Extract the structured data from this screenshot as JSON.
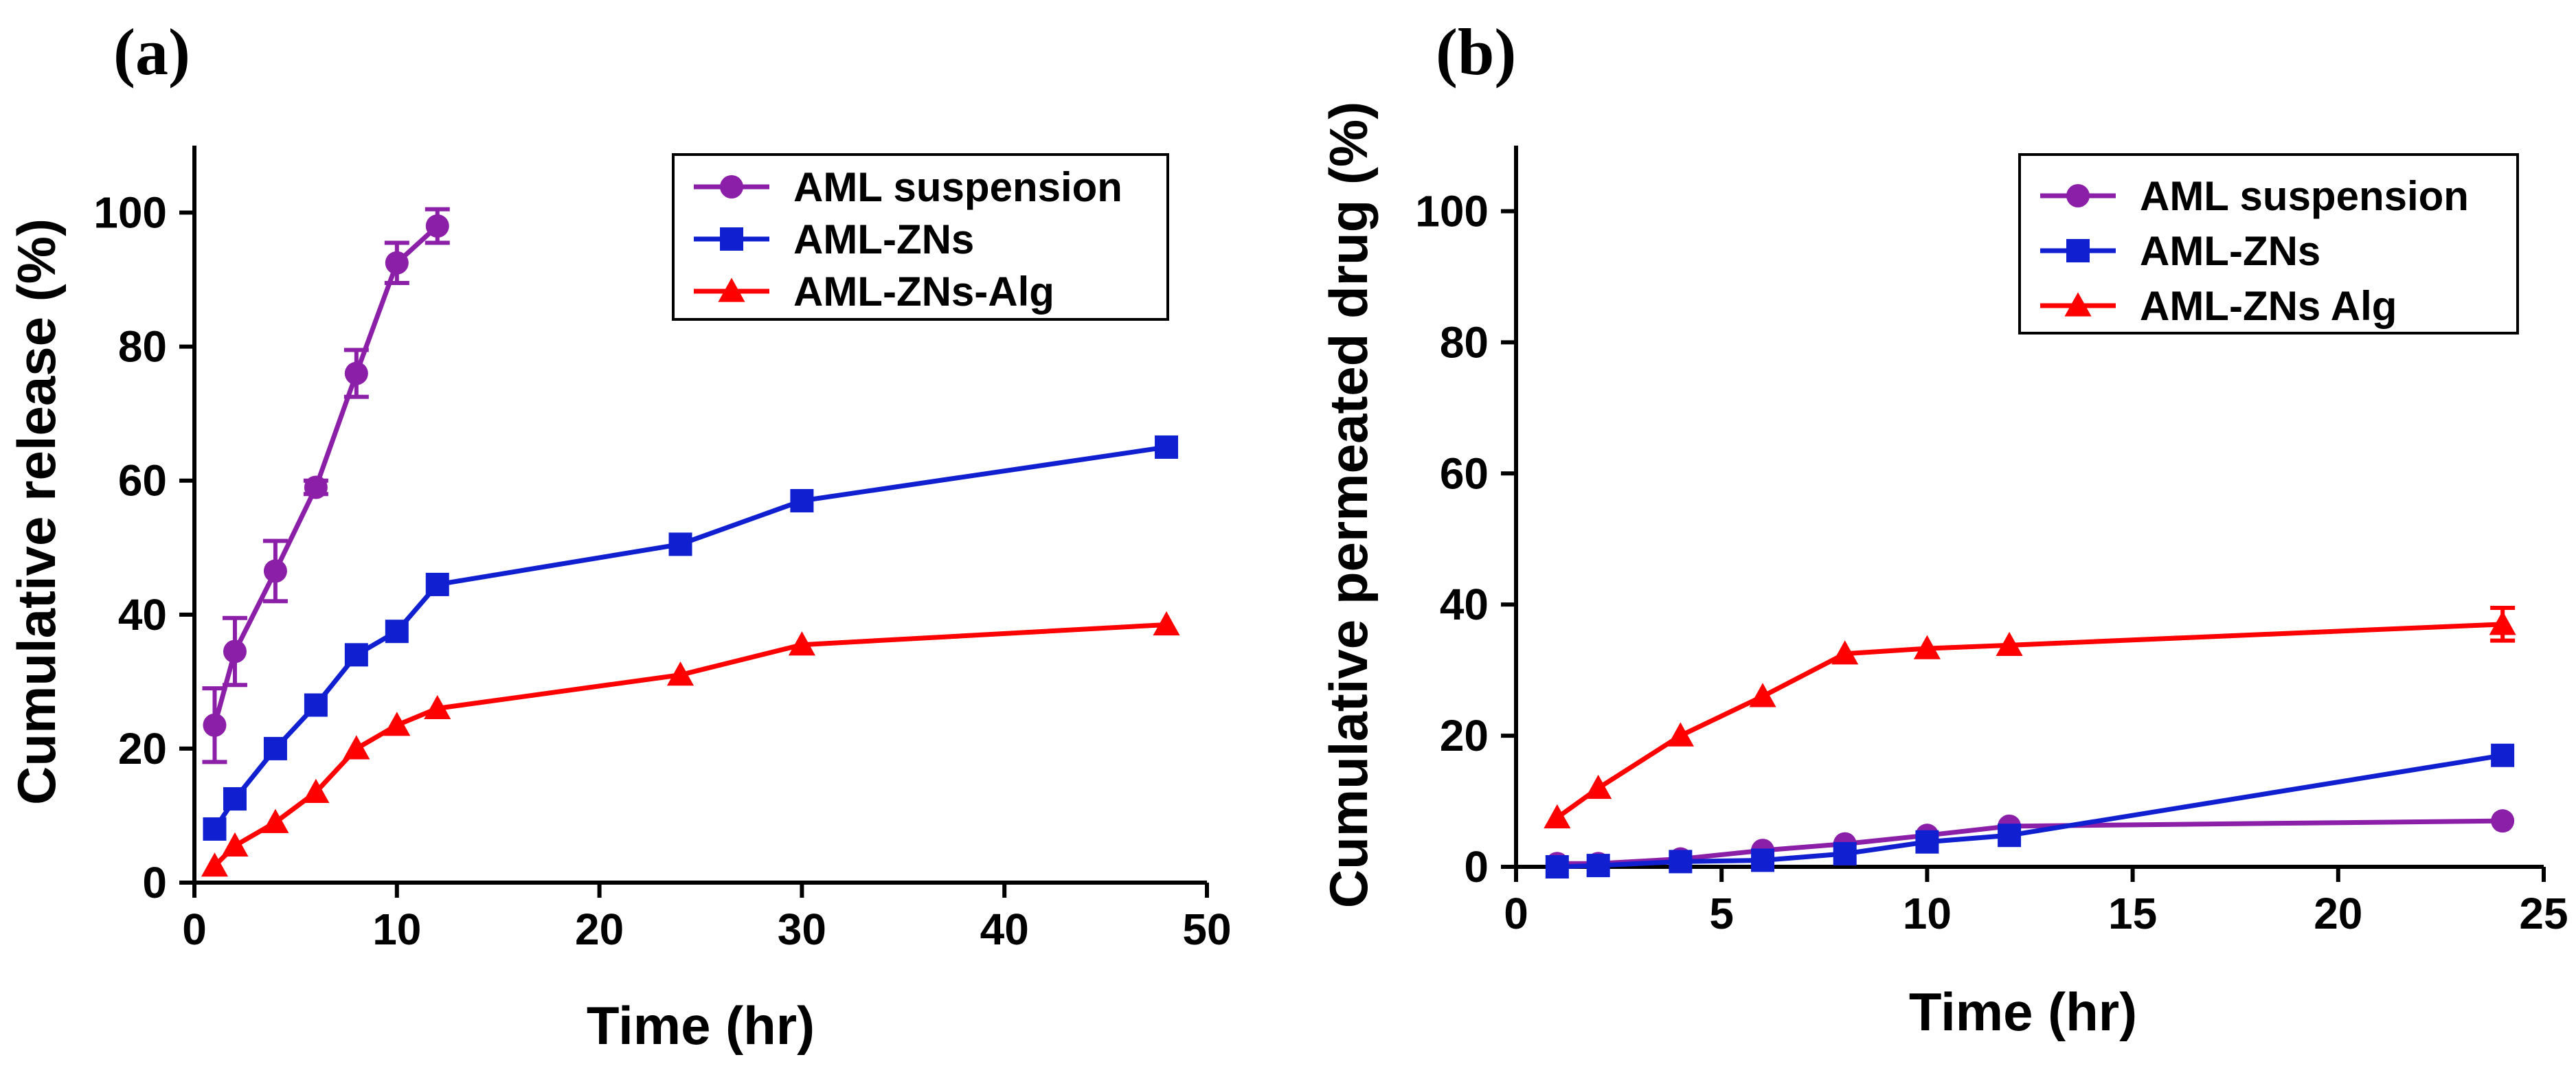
{
  "chart_data": [
    {
      "panel_label": "(a)",
      "type": "line",
      "xlabel": "Time (hr)",
      "ylabel": "Cumulative release (%)",
      "xlim": [
        0,
        50
      ],
      "ylim": [
        0,
        110
      ],
      "xticks": [
        0,
        10,
        20,
        30,
        40,
        50
      ],
      "yticks": [
        0,
        20,
        40,
        60,
        80,
        100
      ],
      "grid": false,
      "legend_position": "top-right",
      "series": [
        {
          "name": "AML suspension",
          "color": "#8B1FA8",
          "marker": "circle",
          "x": [
            1,
            2,
            4,
            6,
            8,
            10,
            12
          ],
          "y": [
            23.5,
            34.5,
            46.5,
            59,
            76,
            92.5,
            98
          ],
          "error": [
            5.5,
            5,
            4.5,
            1,
            3.5,
            3,
            2.5
          ]
        },
        {
          "name": "AML-ZNs",
          "color": "#1020D0",
          "marker": "square",
          "x": [
            1,
            2,
            4,
            6,
            8,
            10,
            12,
            24,
            30,
            48
          ],
          "y": [
            8,
            12.5,
            20,
            26.5,
            34,
            37.5,
            44.5,
            50.5,
            57,
            65
          ],
          "error": [
            0,
            0,
            0,
            0,
            0,
            0,
            0,
            0,
            0,
            0
          ]
        },
        {
          "name": "AML-ZNs-Alg",
          "color": "#FF0000",
          "marker": "triangle",
          "x": [
            1,
            2,
            4,
            6,
            8,
            10,
            12,
            24,
            30,
            48
          ],
          "y": [
            2.5,
            5.5,
            9,
            13.5,
            20,
            23.5,
            26,
            31,
            35.5,
            38.5
          ],
          "error": [
            0,
            0,
            0,
            0,
            0,
            0,
            0,
            0,
            0,
            0
          ]
        }
      ]
    },
    {
      "panel_label": "(b)",
      "type": "line",
      "xlabel": "Time (hr)",
      "ylabel": "Cumulative permeated drug (%)",
      "xlim": [
        0,
        25
      ],
      "ylim": [
        0,
        110
      ],
      "xticks": [
        0,
        5,
        10,
        15,
        20,
        25
      ],
      "yticks": [
        0,
        20,
        40,
        60,
        80,
        100
      ],
      "grid": false,
      "legend_position": "top-right",
      "series": [
        {
          "name": "AML suspension",
          "color": "#8B1FA8",
          "marker": "circle",
          "x": [
            1,
            2,
            4,
            6,
            8,
            10,
            12,
            24
          ],
          "y": [
            0.5,
            0.5,
            1.2,
            2.5,
            3.5,
            4.8,
            6.2,
            7
          ],
          "error": [
            0,
            0,
            0,
            0,
            0,
            0,
            0,
            0
          ]
        },
        {
          "name": "AML-ZNs",
          "color": "#1020D0",
          "marker": "square",
          "x": [
            1,
            2,
            4,
            6,
            8,
            10,
            12,
            24
          ],
          "y": [
            0,
            0.2,
            0.8,
            1,
            2,
            3.8,
            4.8,
            17
          ],
          "error": [
            0,
            0,
            0,
            0,
            0,
            0,
            0,
            0
          ]
        },
        {
          "name": "AML-ZNs Alg",
          "color": "#FF0000",
          "marker": "triangle",
          "x": [
            1,
            2,
            4,
            6,
            8,
            10,
            12,
            24
          ],
          "y": [
            7.5,
            12,
            20,
            26,
            32.5,
            33.3,
            33.8,
            37
          ],
          "error": [
            0,
            0,
            0,
            0,
            0,
            0,
            0,
            2.5
          ]
        }
      ]
    }
  ]
}
